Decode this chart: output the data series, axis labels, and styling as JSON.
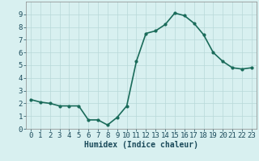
{
  "x": [
    0,
    1,
    2,
    3,
    4,
    5,
    6,
    7,
    8,
    9,
    10,
    11,
    12,
    13,
    14,
    15,
    16,
    17,
    18,
    19,
    20,
    21,
    22,
    23
  ],
  "y": [
    2.3,
    2.1,
    2.0,
    1.8,
    1.8,
    1.8,
    0.7,
    0.7,
    0.3,
    0.9,
    1.8,
    5.3,
    7.5,
    7.7,
    8.2,
    9.1,
    8.9,
    8.3,
    7.4,
    6.0,
    5.3,
    4.8,
    4.7,
    4.8
  ],
  "line_color": "#1a6b5a",
  "marker": "o",
  "marker_size": 2.0,
  "bg_color": "#d8f0f0",
  "grid_color": "#b8d8d8",
  "xlabel": "Humidex (Indice chaleur)",
  "xlim": [
    -0.5,
    23.5
  ],
  "ylim": [
    0,
    10
  ],
  "yticks": [
    0,
    1,
    2,
    3,
    4,
    5,
    6,
    7,
    8,
    9
  ],
  "xticks": [
    0,
    1,
    2,
    3,
    4,
    5,
    6,
    7,
    8,
    9,
    10,
    11,
    12,
    13,
    14,
    15,
    16,
    17,
    18,
    19,
    20,
    21,
    22,
    23
  ],
  "xlabel_fontsize": 7,
  "tick_fontsize": 6.5,
  "xlabel_color": "#1a4a5a",
  "tick_color": "#1a4a5a",
  "line_width": 1.2
}
